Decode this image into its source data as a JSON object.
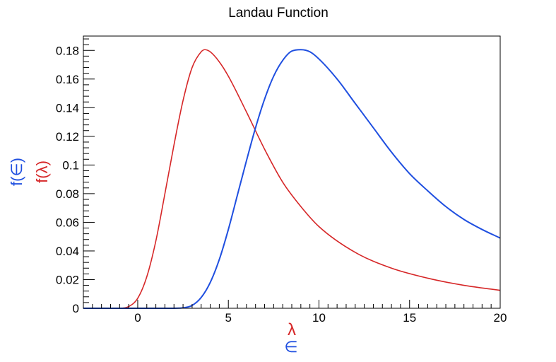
{
  "chart_data": {
    "type": "line",
    "title": "Landau Function",
    "xlabels": [
      {
        "text": "λ",
        "color": "#d62728"
      },
      {
        "text": "∈",
        "color": "#1f4fe0"
      }
    ],
    "ylabels": [
      {
        "text": "f(∈)",
        "color": "#1f4fe0"
      },
      {
        "text": "f(λ)",
        "color": "#d62728"
      }
    ],
    "xlim": [
      -3,
      20
    ],
    "ylim": [
      0,
      0.19
    ],
    "xticks": [
      0,
      5,
      10,
      15,
      20
    ],
    "xtick_labels": [
      "0",
      "5",
      "10",
      "15",
      "20"
    ],
    "yticks": [
      0,
      0.02,
      0.04,
      0.06,
      0.08,
      0.1,
      0.12,
      0.14,
      0.16,
      0.18
    ],
    "ytick_labels": [
      "0",
      "0.02",
      "0.04",
      "0.06",
      "0.08",
      "0.1",
      "0.12",
      "0.14",
      "0.16",
      "0.18"
    ],
    "grid": false,
    "series": [
      {
        "color": "#d62728",
        "x": [
          -3,
          -1,
          -0.5,
          0,
          0.5,
          1,
          1.5,
          2,
          2.5,
          3,
          3.5,
          3.7,
          4,
          4.5,
          5,
          6,
          7,
          8,
          9,
          10,
          12,
          14,
          16,
          18,
          20
        ],
        "y": [
          0,
          0,
          0.0012,
          0.007,
          0.022,
          0.047,
          0.08,
          0.114,
          0.145,
          0.168,
          0.179,
          0.1805,
          0.179,
          0.172,
          0.162,
          0.137,
          0.111,
          0.088,
          0.071,
          0.057,
          0.039,
          0.028,
          0.021,
          0.016,
          0.0125
        ]
      },
      {
        "color": "#1f4fe0",
        "x": [
          -3,
          2,
          2.5,
          3,
          3.5,
          4,
          4.5,
          5,
          5.5,
          6,
          6.5,
          7,
          7.5,
          8,
          8.5,
          9,
          9.5,
          10,
          11,
          12,
          13,
          14,
          15,
          16,
          17,
          18,
          19,
          20
        ],
        "y": [
          0,
          0,
          0.0003,
          0.002,
          0.0075,
          0.018,
          0.034,
          0.055,
          0.079,
          0.103,
          0.126,
          0.146,
          0.162,
          0.173,
          0.1795,
          0.1805,
          0.179,
          0.174,
          0.16,
          0.143,
          0.126,
          0.109,
          0.094,
          0.082,
          0.071,
          0.062,
          0.055,
          0.049
        ]
      }
    ]
  }
}
